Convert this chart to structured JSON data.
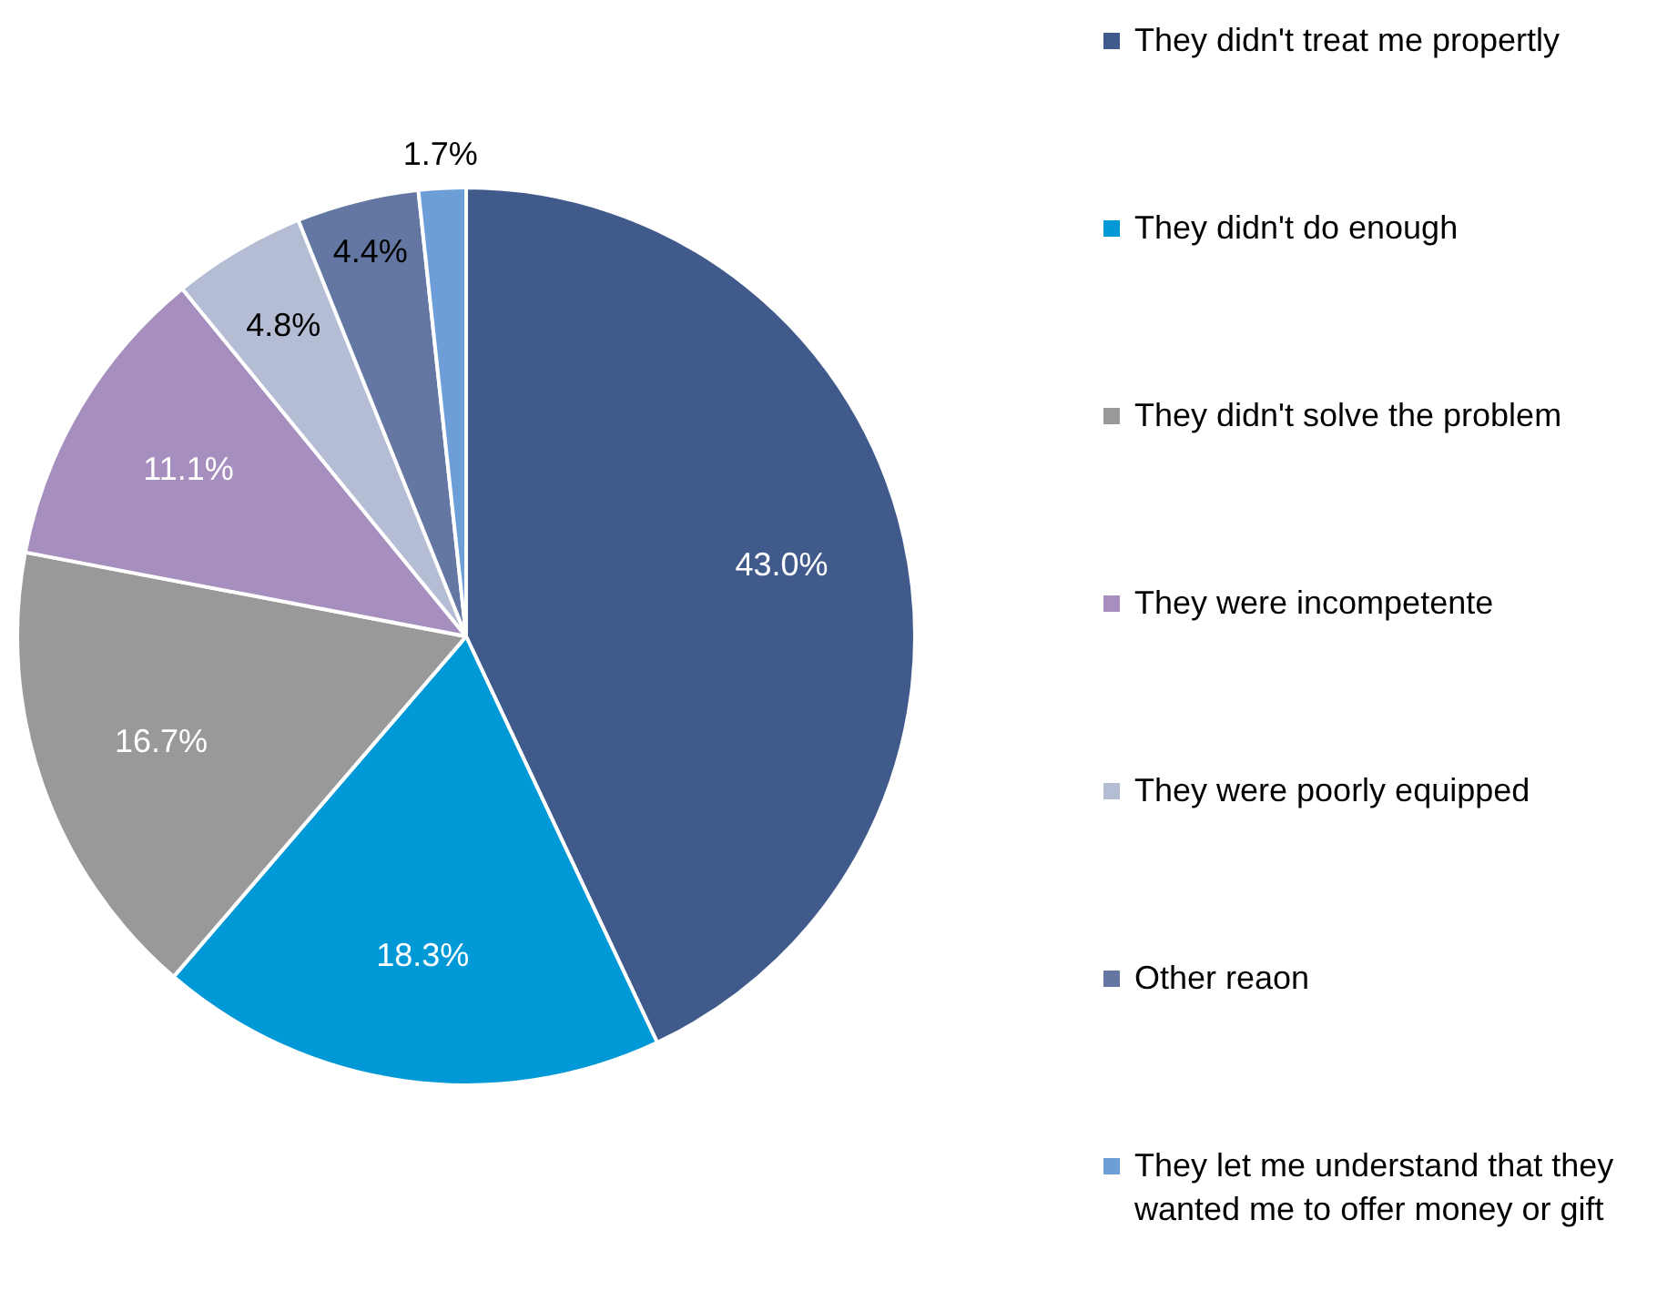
{
  "chart_data": {
    "type": "pie",
    "categories": [
      "They didn't treat me propertly",
      "They didn't do enough",
      "They didn't solve the problem",
      "They were incompetente",
      "They were poorly equipped",
      "Other reaon",
      "They let me understand that they wanted me to offer money or gift"
    ],
    "values": [
      43.0,
      18.3,
      16.7,
      11.1,
      4.8,
      4.4,
      1.7
    ],
    "colors": [
      "#415a8c",
      "#0099d8",
      "#999999",
      "#a68fbe",
      "#b4bdd4",
      "#6477a3",
      "#6e9ed8"
    ],
    "value_labels": [
      "43.0%",
      "18.3%",
      "16.7%",
      "11.1%",
      "4.8%",
      "4.4%",
      "1.7%"
    ],
    "legend": "right"
  }
}
